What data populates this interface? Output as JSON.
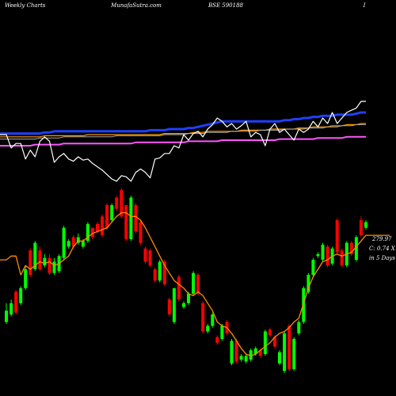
{
  "header": {
    "left": "Weekly Charts",
    "center": "MunafaSutra.com",
    "symbol": "BSE 590188",
    "right": "I"
  },
  "price_labels": {
    "last_price": "279.97",
    "change": "C: 0.74  X",
    "period": "in 5 Days"
  },
  "colors": {
    "background": "#000000",
    "up_candle": "#00ff00",
    "down_candle": "#ff0000",
    "sma_line": "#ff8c00",
    "indicator_blue": "#1e40ff",
    "indicator_white": "#ffffff",
    "indicator_magenta": "#ff55ff",
    "indicator_orange": "#ff9900",
    "indicator_gray": "#aaaaaa"
  },
  "chart_data": [
    {
      "type": "line",
      "panel": "indicator",
      "x": [
        0,
        1,
        2,
        3,
        4,
        5,
        6,
        7,
        8,
        9,
        10,
        11,
        12,
        13,
        14,
        15,
        16,
        17,
        18,
        19,
        20,
        21,
        22,
        23,
        24,
        25,
        26,
        27,
        28,
        29,
        30,
        31,
        32,
        33,
        34,
        35,
        36,
        37,
        38,
        39,
        40,
        41,
        42,
        43,
        44,
        45,
        46,
        47,
        48,
        49,
        50,
        51,
        52,
        53,
        54,
        55,
        56,
        57,
        58,
        59,
        60,
        61,
        62,
        63,
        64,
        65,
        66,
        67,
        68,
        69,
        70,
        71,
        72,
        73,
        74,
        75
      ],
      "ylim": [
        0,
        100
      ],
      "series": [
        {
          "key": "blue",
          "values": [
            51,
            51,
            51,
            51,
            51,
            51,
            51,
            51,
            52,
            52,
            53,
            53,
            53,
            53,
            53,
            53,
            53,
            53,
            53,
            53,
            53,
            53,
            53,
            53,
            53,
            53,
            53,
            53,
            53,
            53,
            54,
            54,
            54,
            54,
            55,
            55,
            55,
            55,
            56,
            56,
            57,
            58,
            59,
            60,
            61,
            62,
            62,
            62,
            62,
            62,
            62,
            62,
            62,
            62,
            62,
            62,
            62,
            62,
            63,
            63,
            64,
            64,
            65,
            65,
            66,
            66,
            67,
            67,
            67,
            68,
            68,
            68,
            68,
            69,
            70,
            70
          ]
        },
        {
          "key": "orange",
          "values": [
            48,
            48,
            48,
            48,
            48,
            48,
            48,
            48,
            49,
            49,
            49,
            49,
            49,
            49,
            49,
            49,
            49,
            50,
            50,
            50,
            50,
            50,
            50,
            50,
            50,
            50,
            50,
            50,
            50,
            50,
            50,
            50,
            50,
            51,
            51,
            51,
            51,
            51,
            51,
            52,
            52,
            52,
            53,
            53,
            53,
            53,
            53,
            53,
            53,
            54,
            54,
            54,
            54,
            54,
            54,
            55,
            55,
            55,
            55,
            55,
            55,
            56,
            56,
            56,
            57,
            57,
            57,
            57,
            58,
            58,
            58,
            59,
            59,
            59,
            60,
            60
          ]
        },
        {
          "key": "gray",
          "values": [
            46,
            46,
            46,
            46,
            46,
            46,
            46,
            47,
            47,
            47,
            47,
            47,
            48,
            48,
            48,
            48,
            48,
            48,
            48,
            48,
            48,
            48,
            48,
            49,
            49,
            49,
            49,
            49,
            49,
            49,
            49,
            49,
            49,
            50,
            50,
            50,
            50,
            50,
            51,
            51,
            51,
            51,
            52,
            52,
            52,
            52,
            52,
            53,
            53,
            53,
            53,
            53,
            53,
            54,
            54,
            54,
            54,
            54,
            55,
            55,
            55,
            55,
            55,
            56,
            56,
            56,
            56,
            57,
            57,
            57,
            58,
            58,
            58,
            59,
            59,
            59
          ]
        },
        {
          "key": "magenta",
          "values": [
            40,
            40,
            40,
            40,
            40,
            40,
            41,
            41,
            41,
            41,
            41,
            41,
            42,
            42,
            42,
            42,
            42,
            42,
            42,
            42,
            42,
            42,
            42,
            42,
            42,
            42,
            42,
            43,
            43,
            43,
            43,
            43,
            43,
            43,
            43,
            43,
            43,
            43,
            44,
            44,
            44,
            44,
            44,
            44,
            44,
            45,
            45,
            45,
            45,
            45,
            45,
            45,
            45,
            45,
            45,
            45,
            45,
            46,
            46,
            46,
            46,
            46,
            46,
            46,
            46,
            47,
            47,
            47,
            47,
            47,
            47,
            48,
            48,
            48,
            48,
            48
          ]
        },
        {
          "key": "white",
          "values": [
            50,
            38,
            42,
            42,
            28,
            36,
            30,
            44,
            48,
            44,
            25,
            30,
            33,
            28,
            26,
            30,
            27,
            28,
            24,
            21,
            18,
            14,
            10,
            8,
            13,
            12,
            8,
            16,
            19,
            16,
            11,
            28,
            29,
            33,
            33,
            40,
            38,
            50,
            45,
            51,
            53,
            48,
            55,
            59,
            65,
            62,
            57,
            60,
            55,
            58,
            62,
            48,
            52,
            50,
            40,
            55,
            60,
            52,
            55,
            50,
            45,
            55,
            52,
            55,
            62,
            57,
            65,
            60,
            70,
            60,
            65,
            70,
            72,
            74,
            80,
            80
          ]
        }
      ]
    },
    {
      "type": "candlestick",
      "panel": "price",
      "x": [
        0,
        1,
        2,
        3,
        4,
        5,
        6,
        7,
        8,
        9,
        10,
        11,
        12,
        13,
        14,
        15,
        16,
        17,
        18,
        19,
        20,
        21,
        22,
        23,
        24,
        25,
        26,
        27,
        28,
        29,
        30,
        31,
        32,
        33,
        34,
        35,
        36,
        37,
        38,
        39,
        40,
        41,
        42,
        43,
        44,
        45,
        46,
        47,
        48,
        49,
        50,
        51,
        52,
        53,
        54,
        55,
        56,
        57,
        58,
        59,
        60,
        61,
        62,
        63,
        64,
        65,
        66,
        67,
        68,
        69,
        70,
        71,
        72,
        73,
        74,
        75
      ],
      "ylim": [
        0,
        100
      ],
      "open": [
        30,
        34,
        46,
        40,
        48,
        68,
        58,
        68,
        60,
        64,
        56,
        57,
        64,
        70,
        75,
        72,
        70,
        73,
        80,
        82,
        86,
        92,
        84,
        96,
        100,
        92,
        74,
        92,
        83,
        69,
        68,
        58,
        52,
        62,
        42,
        30,
        54,
        38,
        40,
        45,
        55,
        40,
        25,
        28,
        22,
        21,
        30,
        8,
        20,
        10,
        9,
        10,
        13,
        15,
        13,
        26,
        22,
        8,
        4,
        28,
        5,
        24,
        30,
        46,
        55,
        65,
        63,
        70,
        61,
        84,
        68,
        60,
        72,
        63,
        84,
        80
      ],
      "close": [
        36,
        40,
        35,
        48,
        58,
        55,
        72,
        58,
        64,
        56,
        62,
        65,
        80,
        73,
        70,
        75,
        73,
        82,
        75,
        78,
        76,
        80,
        92,
        90,
        86,
        74,
        96,
        78,
        72,
        62,
        60,
        52,
        62,
        50,
        34,
        48,
        42,
        40,
        45,
        56,
        45,
        25,
        28,
        34,
        19,
        28,
        24,
        20,
        9,
        12,
        12,
        15,
        16,
        12,
        25,
        23,
        17,
        14,
        24,
        5,
        21,
        30,
        48,
        55,
        63,
        66,
        71,
        60,
        69,
        67,
        60,
        72,
        66,
        75,
        76,
        83
      ],
      "high": [
        40,
        42,
        47,
        49,
        60,
        69,
        73,
        70,
        66,
        66,
        64,
        66,
        81,
        74,
        76,
        77,
        74,
        83,
        80,
        83,
        87,
        93,
        93,
        97,
        101,
        92,
        97,
        93,
        84,
        70,
        69,
        59,
        63,
        63,
        43,
        48,
        55,
        41,
        46,
        57,
        56,
        41,
        29,
        35,
        23,
        29,
        31,
        21,
        21,
        13,
        13,
        16,
        17,
        16,
        26,
        27,
        23,
        15,
        25,
        29,
        22,
        31,
        49,
        56,
        64,
        67,
        72,
        71,
        70,
        85,
        69,
        73,
        73,
        76,
        86,
        84
      ],
      "low": [
        29,
        33,
        34,
        39,
        47,
        54,
        57,
        57,
        59,
        55,
        55,
        56,
        63,
        69,
        69,
        71,
        69,
        72,
        74,
        77,
        75,
        79,
        83,
        89,
        85,
        73,
        73,
        77,
        71,
        61,
        59,
        51,
        51,
        49,
        33,
        29,
        41,
        37,
        39,
        44,
        44,
        24,
        24,
        27,
        18,
        20,
        23,
        7,
        8,
        9,
        8,
        9,
        12,
        11,
        12,
        22,
        16,
        7,
        3,
        4,
        4,
        23,
        29,
        45,
        54,
        64,
        62,
        59,
        60,
        66,
        59,
        59,
        65,
        62,
        75,
        79
      ],
      "sma": [
        63,
        65,
        65,
        55,
        60,
        58,
        60,
        62,
        61,
        62,
        60,
        61,
        63,
        65,
        70,
        73,
        73,
        75,
        77,
        78,
        79,
        80,
        83,
        86,
        88,
        88,
        86,
        86,
        84,
        80,
        75,
        70,
        65,
        60,
        56,
        52,
        50,
        48,
        45,
        44,
        46,
        44,
        40,
        36,
        30,
        28,
        27,
        24,
        20,
        16,
        13,
        12,
        13,
        15,
        17,
        19,
        22,
        24,
        25,
        27,
        30,
        32,
        40,
        48,
        54,
        58,
        62,
        63,
        65,
        66,
        65,
        66,
        67,
        70,
        73,
        76
      ]
    }
  ]
}
